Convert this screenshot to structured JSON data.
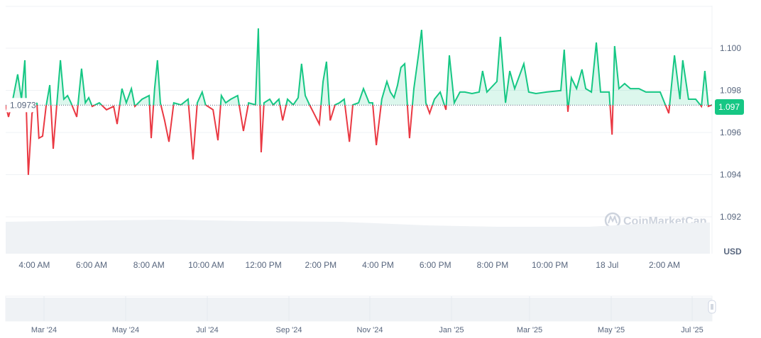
{
  "chart_data": {
    "type": "line",
    "title": "",
    "xlabel": "",
    "ylabel": "USD",
    "x_unit": "hours since 00:00 on 17 Jul (values > 24 fall on 18 Jul)",
    "ylim": [
      1.0915,
      1.1015
    ],
    "xlim": [
      3.0,
      27.66
    ],
    "grid": true,
    "baseline": 1.0973,
    "baseline_label": "1.0973",
    "current_price_label": "1.097",
    "y_ticks": [
      {
        "value": 1.092,
        "label": "1.092"
      },
      {
        "value": 1.094,
        "label": "1.094"
      },
      {
        "value": 1.096,
        "label": "1.096"
      },
      {
        "value": 1.098,
        "label": "1.098"
      },
      {
        "value": 1.1,
        "label": "1.100"
      }
    ],
    "x_ticks": [
      {
        "value": 4,
        "label": "4:00 AM"
      },
      {
        "value": 6,
        "label": "6:00 AM"
      },
      {
        "value": 8,
        "label": "8:00 AM"
      },
      {
        "value": 10,
        "label": "10:00 AM"
      },
      {
        "value": 12,
        "label": "12:00 PM"
      },
      {
        "value": 14,
        "label": "2:00 PM"
      },
      {
        "value": 16,
        "label": "4:00 PM"
      },
      {
        "value": 18,
        "label": "6:00 PM"
      },
      {
        "value": 20,
        "label": "8:00 PM"
      },
      {
        "value": 22,
        "label": "10:00 PM"
      },
      {
        "value": 24,
        "label": "18 Jul"
      },
      {
        "value": 26,
        "label": "2:00 AM"
      }
    ],
    "series": [
      {
        "name": "Price",
        "x": [
          3.0,
          3.1,
          3.25,
          3.42,
          3.55,
          3.67,
          3.79,
          3.92,
          4.09,
          4.16,
          4.29,
          4.41,
          4.54,
          4.66,
          4.78,
          4.91,
          5.03,
          5.16,
          5.28,
          5.48,
          5.65,
          5.78,
          5.9,
          6.02,
          6.27,
          6.52,
          6.77,
          6.89,
          7.06,
          7.21,
          7.39,
          7.51,
          7.76,
          8.01,
          8.08,
          8.2,
          8.3,
          8.4,
          8.55,
          8.7,
          8.87,
          9.12,
          9.37,
          9.54,
          9.69,
          9.86,
          9.98,
          10.24,
          10.41,
          10.53,
          10.68,
          10.86,
          11.1,
          11.3,
          11.48,
          11.72,
          11.82,
          11.92,
          12.02,
          12.22,
          12.34,
          12.54,
          12.67,
          12.84,
          13.04,
          13.21,
          13.33,
          13.46,
          13.61,
          13.76,
          13.95,
          14.08,
          14.2,
          14.33,
          14.5,
          14.65,
          14.82,
          15.0,
          15.12,
          15.32,
          15.49,
          15.69,
          15.81,
          15.94,
          16.13,
          16.31,
          16.43,
          16.56,
          16.68,
          16.8,
          16.93,
          17.1,
          17.25,
          17.42,
          17.52,
          17.67,
          17.8,
          17.97,
          18.17,
          18.37,
          18.49,
          18.66,
          18.86,
          19.03,
          19.28,
          19.53,
          19.65,
          19.8,
          20.15,
          20.27,
          20.45,
          20.6,
          20.77,
          21.09,
          21.26,
          21.51,
          21.88,
          22.38,
          22.5,
          22.63,
          22.75,
          22.93,
          23.12,
          23.25,
          23.45,
          23.62,
          23.77,
          24.07,
          24.17,
          24.26,
          24.41,
          24.61,
          24.81,
          25.11,
          25.35,
          25.6,
          25.85,
          26.15,
          26.35,
          26.54,
          26.64,
          26.84,
          27.09,
          27.29,
          27.41,
          27.53,
          27.66
        ],
        "values": [
          1.09728,
          1.09674,
          1.09758,
          1.09876,
          1.09758,
          1.09943,
          1.09399,
          1.09691,
          1.09741,
          1.09573,
          1.09583,
          1.09724,
          1.09825,
          1.09523,
          1.09724,
          1.09943,
          1.09758,
          1.09775,
          1.09741,
          1.09674,
          1.09903,
          1.09741,
          1.09765,
          1.09724,
          1.09741,
          1.09708,
          1.09724,
          1.0964,
          1.09808,
          1.09741,
          1.09808,
          1.09724,
          1.09758,
          1.09775,
          1.09573,
          1.09808,
          1.09943,
          1.09741,
          1.09657,
          1.09556,
          1.09741,
          1.09731,
          1.09758,
          1.09472,
          1.09741,
          1.09792,
          1.09731,
          1.09708,
          1.09563,
          1.09775,
          1.09741,
          1.09758,
          1.09775,
          1.09607,
          1.09741,
          1.09731,
          1.10094,
          1.09506,
          1.09741,
          1.09758,
          1.09731,
          1.09758,
          1.09657,
          1.09758,
          1.09731,
          1.09765,
          1.09926,
          1.09775,
          1.09731,
          1.09691,
          1.0964,
          1.09842,
          1.09936,
          1.09657,
          1.09731,
          1.09741,
          1.09758,
          1.09556,
          1.09731,
          1.09741,
          1.09808,
          1.09741,
          1.09741,
          1.0954,
          1.09758,
          1.09842,
          1.09792,
          1.09765,
          1.09825,
          1.09909,
          1.09926,
          1.09573,
          1.09808,
          1.09976,
          1.10087,
          1.09741,
          1.09691,
          1.09758,
          1.09792,
          1.09708,
          1.09966,
          1.09741,
          1.09792,
          1.09792,
          1.09785,
          1.09792,
          1.09892,
          1.09792,
          1.09842,
          1.10054,
          1.09741,
          1.09892,
          1.09808,
          1.09926,
          1.09792,
          1.09785,
          1.09792,
          1.09799,
          1.09993,
          1.09698,
          1.09859,
          1.09808,
          1.09899,
          1.09808,
          1.09792,
          1.10027,
          1.09792,
          1.09792,
          1.0959,
          1.1001,
          1.09808,
          1.09832,
          1.09808,
          1.09808,
          1.09792,
          1.09792,
          1.09792,
          1.09691,
          1.09966,
          1.09758,
          1.09943,
          1.09758,
          1.09758,
          1.09724,
          1.09892,
          1.09724,
          1.09731
        ]
      }
    ],
    "volume_label": "volume (shaded area)"
  },
  "navigator": {
    "labels": [
      "Mar '24",
      "May '24",
      "Jul '24",
      "Sep '24",
      "Nov '24",
      "Jan '25",
      "Mar '25",
      "May '25",
      "Jul '25"
    ]
  },
  "watermark": "CoinMarketCap",
  "colors": {
    "up": "#16c784",
    "down": "#ea3943",
    "up_fill": "#16c78433",
    "grid": "#eff2f5",
    "axis_text": "#58667e",
    "volume": "#eff2f5"
  }
}
